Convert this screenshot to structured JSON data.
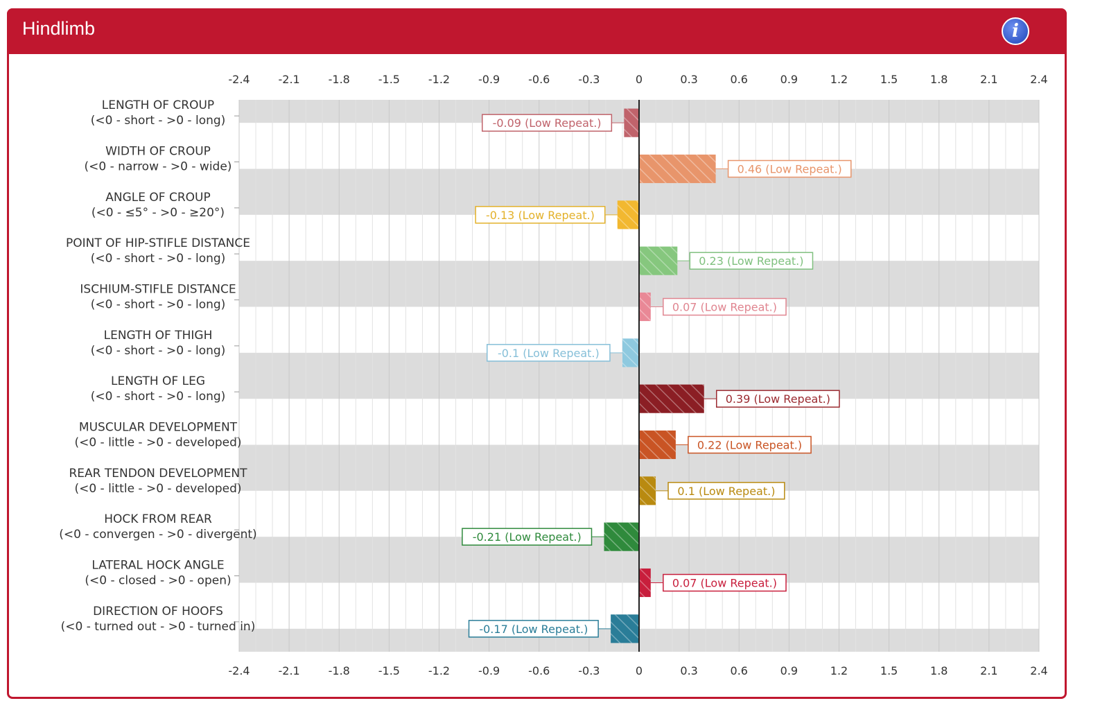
{
  "header": {
    "title": "Hindlimb",
    "info_icon": "info-icon"
  },
  "chart_data": {
    "type": "bar",
    "orientation": "horizontal",
    "xlim": [
      -2.4,
      2.4
    ],
    "ticks": [
      "-2.4",
      "-2.1",
      "-1.8",
      "-1.5",
      "-1.2",
      "-0.9",
      "-0.6",
      "-0.3",
      "0",
      "0.3",
      "0.6",
      "0.9",
      "1.2",
      "1.5",
      "1.8",
      "2.1",
      "2.4"
    ],
    "categories": [
      {
        "name": "LENGTH OF CROUP",
        "sub": "(<0 - short - >0 - long)"
      },
      {
        "name": "WIDTH OF CROUP",
        "sub": "(<0 - narrow - >0 - wide)"
      },
      {
        "name": "ANGLE OF CROUP",
        "sub": "(<0 - ≤5° - >0 - ≥20°)"
      },
      {
        "name": "POINT OF HIP-STIFLE DISTANCE",
        "sub": "(<0 - short - >0 - long)"
      },
      {
        "name": "ISCHIUM-STIFLE DISTANCE",
        "sub": "(<0 - short - >0 - long)"
      },
      {
        "name": "LENGTH OF THIGH",
        "sub": "(<0 - short - >0 - long)"
      },
      {
        "name": "LENGTH OF LEG",
        "sub": "(<0 - short - >0 - long)"
      },
      {
        "name": "MUSCULAR DEVELOPMENT",
        "sub": "(<0 - little - >0 - developed)"
      },
      {
        "name": "REAR TENDON DEVELOPMENT",
        "sub": "(<0 - little - >0 - developed)"
      },
      {
        "name": "HOCK FROM REAR",
        "sub": "(<0 - convergen - >0 - divergent)"
      },
      {
        "name": "LATERAL HOCK ANGLE",
        "sub": "(<0 - closed - >0 - open)"
      },
      {
        "name": "DIRECTION OF HOOFS",
        "sub": "(<0 - turned out - >0 - turned in)"
      }
    ],
    "values": [
      -0.09,
      0.46,
      -0.13,
      0.23,
      0.07,
      -0.1,
      0.39,
      0.22,
      0.1,
      -0.21,
      0.07,
      -0.17
    ],
    "data_labels": [
      "-0.09 (Low Repeat.)",
      "0.46 (Low Repeat.)",
      "-0.13 (Low Repeat.)",
      "0.23 (Low Repeat.)",
      "0.07 (Low Repeat.)",
      "-0.1 (Low Repeat.)",
      "0.39 (Low Repeat.)",
      "0.22 (Low Repeat.)",
      "0.1 (Low Repeat.)",
      "-0.21 (Low Repeat.)",
      "0.07 (Low Repeat.)",
      "-0.17 (Low Repeat.)"
    ],
    "bar_colors": [
      "#c0636b",
      "#e8956b",
      "#f2b830",
      "#86c77e",
      "#e98896",
      "#8ec9df",
      "#8b1e24",
      "#c95424",
      "#b98a10",
      "#2f8a3c",
      "#c81e3c",
      "#2a7d98"
    ],
    "label_colors": [
      "#c0636b",
      "#e8956b",
      "#e3b12a",
      "#7fc07e",
      "#e08590",
      "#86bfd8",
      "#9b2a30",
      "#c95424",
      "#b98a10",
      "#2f8a3c",
      "#c81e3c",
      "#2a7d98"
    ],
    "grid": true,
    "band_color": "#dcdcdc"
  }
}
